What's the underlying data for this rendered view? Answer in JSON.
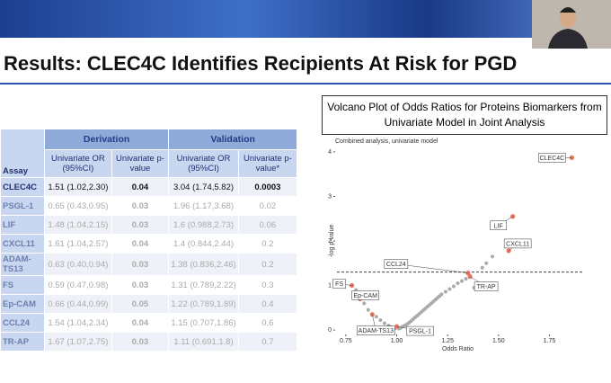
{
  "header": {
    "title": "Results: CLEC4C Identifies Recipients At Risk for PGD"
  },
  "table": {
    "groups": [
      "Derivation",
      "Validation"
    ],
    "columns": [
      "Assay",
      "Univariate OR (95%CI)",
      "Univariate p-value",
      "Univariate OR (95%CI)",
      "Univariate p-value*"
    ],
    "rows": [
      [
        "CLEC4C",
        "1.51 (1.02,2.30)",
        "0.04",
        "3.04 (1.74,5.82)",
        "0.0003"
      ],
      [
        "PSGL-1",
        "0.65 (0.43,0.95)",
        "0.03",
        "1.96 (1.17,3.68)",
        "0.02"
      ],
      [
        "LIF",
        "1.48 (1.04,2.15)",
        "0.03",
        "1.6 (0.988,2.73)",
        "0.06"
      ],
      [
        "CXCL11",
        "1.61 (1.04,2.57)",
        "0.04",
        "1.4 (0.844,2.44)",
        "0.2"
      ],
      [
        "ADAM-TS13",
        "0.63 (0.40,0.94)",
        "0.03",
        "1.38 (0.836,2.46)",
        "0.2"
      ],
      [
        "FS",
        "0.59 (0.47,0.98)",
        "0.03",
        "1.31 (0.789,2.22)",
        "0.3"
      ],
      [
        "Ep-CAM",
        "0.66 (0.44,0.99)",
        "0.05",
        "1.22 (0.789,1.89)",
        "0.4"
      ],
      [
        "CCL24",
        "1.54 (1.04,2.34)",
        "0.04",
        "1.15 (0.707,1.86)",
        "0.6"
      ],
      [
        "TR-AP",
        "1.67 (1.07,2.75)",
        "0.03",
        "1.11 (0.691,1.8)",
        "0.7"
      ]
    ]
  },
  "figure": {
    "caption": "Volcano Plot of Odds Ratios for Proteins Biomarkers from Univariate Model in Joint Analysis",
    "plot": {
      "type": "scatter",
      "subtitle": "Combined analysis, univariate model",
      "xlabel": "Odds Ratio",
      "ylabel": "-log p-value",
      "xlim": [
        0.68,
        1.92
      ],
      "ylim": [
        -0.1,
        4.1
      ],
      "xticks": [
        0.75,
        {
          "value": 1,
          "label": "1.00"
        },
        1.25,
        {
          "value": 1.5,
          "label": "1.50"
        },
        1.75
      ],
      "yticks": [
        0,
        1,
        2,
        3,
        4
      ],
      "threshold": 1.3,
      "color": "#aaaaaa",
      "highlight_color": "#e8735f",
      "x": [
        0.8,
        0.84,
        0.86,
        0.9,
        0.92,
        0.94,
        0.96,
        0.97,
        0.98,
        0.99,
        1.01,
        1.02,
        1.03,
        1.04,
        1.05,
        1.06,
        1.07,
        1.08,
        1.09,
        1.1,
        1.11,
        1.12,
        1.13,
        1.14,
        1.15,
        1.16,
        1.17,
        1.18,
        1.19,
        1.2,
        1.21,
        1.22,
        1.24,
        1.26,
        1.28,
        1.3,
        1.32,
        1.34,
        1.38,
        1.4,
        1.42,
        1.44,
        1.47
      ],
      "y": [
        0.9,
        0.6,
        0.45,
        0.3,
        0.22,
        0.15,
        0.1,
        0.07,
        0.05,
        0.03,
        0.03,
        0.05,
        0.08,
        0.1,
        0.13,
        0.16,
        0.2,
        0.24,
        0.28,
        0.32,
        0.36,
        0.4,
        0.44,
        0.48,
        0.52,
        0.56,
        0.6,
        0.64,
        0.68,
        0.72,
        0.76,
        0.8,
        0.86,
        0.92,
        0.98,
        1.05,
        1.1,
        1.15,
        0.95,
        1.0,
        1.4,
        1.5,
        1.65
      ],
      "labeled": [
        {
          "label": "CLEC4C",
          "x": 1.86,
          "y": 3.87
        },
        {
          "label": "LIF",
          "x": 1.57,
          "y": 2.55
        },
        {
          "label": "CXCL11",
          "x": 1.55,
          "y": 1.78
        },
        {
          "label": "CCL24",
          "x": 1.35,
          "y": 1.28
        },
        {
          "label": "TR-AP",
          "x": 1.36,
          "y": 1.2
        },
        {
          "label": "FS",
          "x": 0.78,
          "y": 1.0
        },
        {
          "label": "Ep-CAM",
          "x": 0.82,
          "y": 0.7
        },
        {
          "label": "ADAM-TS13",
          "x": 0.88,
          "y": 0.35
        },
        {
          "label": "PSGL-1",
          "x": 1.0,
          "y": 0.08
        }
      ]
    }
  }
}
